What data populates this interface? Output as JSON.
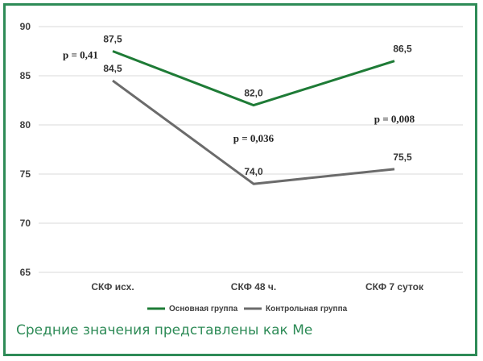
{
  "chart_data": {
    "type": "line",
    "categories": [
      "СКФ исх.",
      "СКФ 48 ч.",
      "СКФ 7 суток"
    ],
    "series": [
      {
        "name": "Основная группа",
        "values": [
          87.5,
          82.0,
          86.5
        ],
        "labels": [
          "87,5",
          "82,0",
          "86,5"
        ],
        "color": "#1e7b36"
      },
      {
        "name": "Контрольная группа",
        "values": [
          84.5,
          74.0,
          75.5
        ],
        "labels": [
          "84,5",
          "74,0",
          "75,5"
        ],
        "color": "#6b6b6b"
      }
    ],
    "yticks": [
      90,
      85,
      80,
      75,
      70,
      65
    ],
    "ylim": [
      65,
      90
    ],
    "grid": true,
    "legend_position": "bottom",
    "annotations": [
      {
        "text": "p = 0,41",
        "category_index": 0,
        "value": 87.5
      },
      {
        "text": "p = 0,036",
        "category_index": 1,
        "value": 79.0
      },
      {
        "text": "p = 0,008",
        "category_index": 2,
        "value": 81.0
      }
    ]
  },
  "footnote": "Средние значения представлены как Ме"
}
